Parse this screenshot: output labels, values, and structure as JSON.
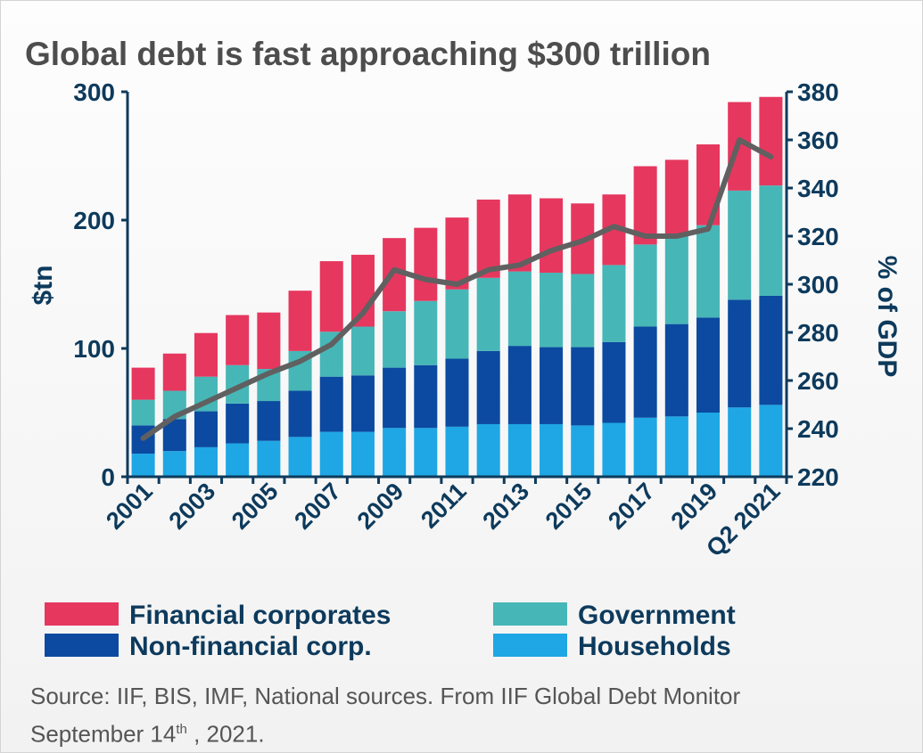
{
  "title": "Global debt is fast approaching $300 trillion",
  "source": {
    "line1": "Source: IIF, BIS, IMF, National sources. From IIF Global Debt Monitor",
    "line2_pre": "September 14",
    "line2_sup": "th",
    "line2_post": " , 2021."
  },
  "chart_data": {
    "type": "bar",
    "stacked": true,
    "categories": [
      "2001",
      "2002",
      "2003",
      "2004",
      "2005",
      "2006",
      "2007",
      "2008",
      "2009",
      "2010",
      "2011",
      "2012",
      "2013",
      "2014",
      "2015",
      "2016",
      "2017",
      "2018",
      "2019",
      "2020",
      "Q2 2021"
    ],
    "tick_labels": [
      "2001",
      "",
      "2003",
      "",
      "2005",
      "",
      "2007",
      "",
      "2009",
      "",
      "2011",
      "",
      "2013",
      "",
      "2015",
      "",
      "2017",
      "",
      "2019",
      "",
      "Q2 2021"
    ],
    "ylabel": "$tn",
    "y2label": "% of GDP",
    "ylim": [
      0,
      300
    ],
    "y_ticks": [
      0,
      100,
      200,
      300
    ],
    "y2lim": [
      220,
      380
    ],
    "y2_ticks": [
      220,
      240,
      260,
      280,
      300,
      320,
      340,
      360,
      380
    ],
    "grid": false,
    "legend_position": "bottom",
    "series": [
      {
        "name": "Households",
        "color": "#1ea7e4",
        "values": [
          18,
          20,
          23,
          26,
          28,
          31,
          35,
          35,
          38,
          38,
          39,
          41,
          41,
          41,
          40,
          42,
          46,
          47,
          50,
          54,
          56
        ]
      },
      {
        "name": "Non-financial corp.",
        "color": "#0b4aa0",
        "values": [
          22,
          25,
          28,
          31,
          31,
          36,
          43,
          44,
          47,
          49,
          53,
          57,
          61,
          60,
          61,
          63,
          71,
          72,
          74,
          84,
          85
        ]
      },
      {
        "name": "Government",
        "color": "#47b6b7",
        "values": [
          20,
          22,
          27,
          30,
          25,
          31,
          35,
          38,
          44,
          50,
          54,
          57,
          58,
          58,
          57,
          60,
          64,
          70,
          72,
          85,
          86
        ]
      },
      {
        "name": "Financial corporates",
        "color": "#e6375f",
        "values": [
          25,
          29,
          34,
          39,
          44,
          47,
          55,
          56,
          57,
          57,
          56,
          61,
          60,
          58,
          55,
          55,
          61,
          58,
          63,
          69,
          69
        ]
      }
    ],
    "line": {
      "axis": "right",
      "color": "#606060",
      "values": [
        236,
        245,
        251,
        257,
        263,
        268,
        275,
        288,
        306,
        302,
        300,
        306,
        308,
        314,
        318,
        324,
        320,
        320,
        323,
        360,
        353
      ]
    }
  }
}
